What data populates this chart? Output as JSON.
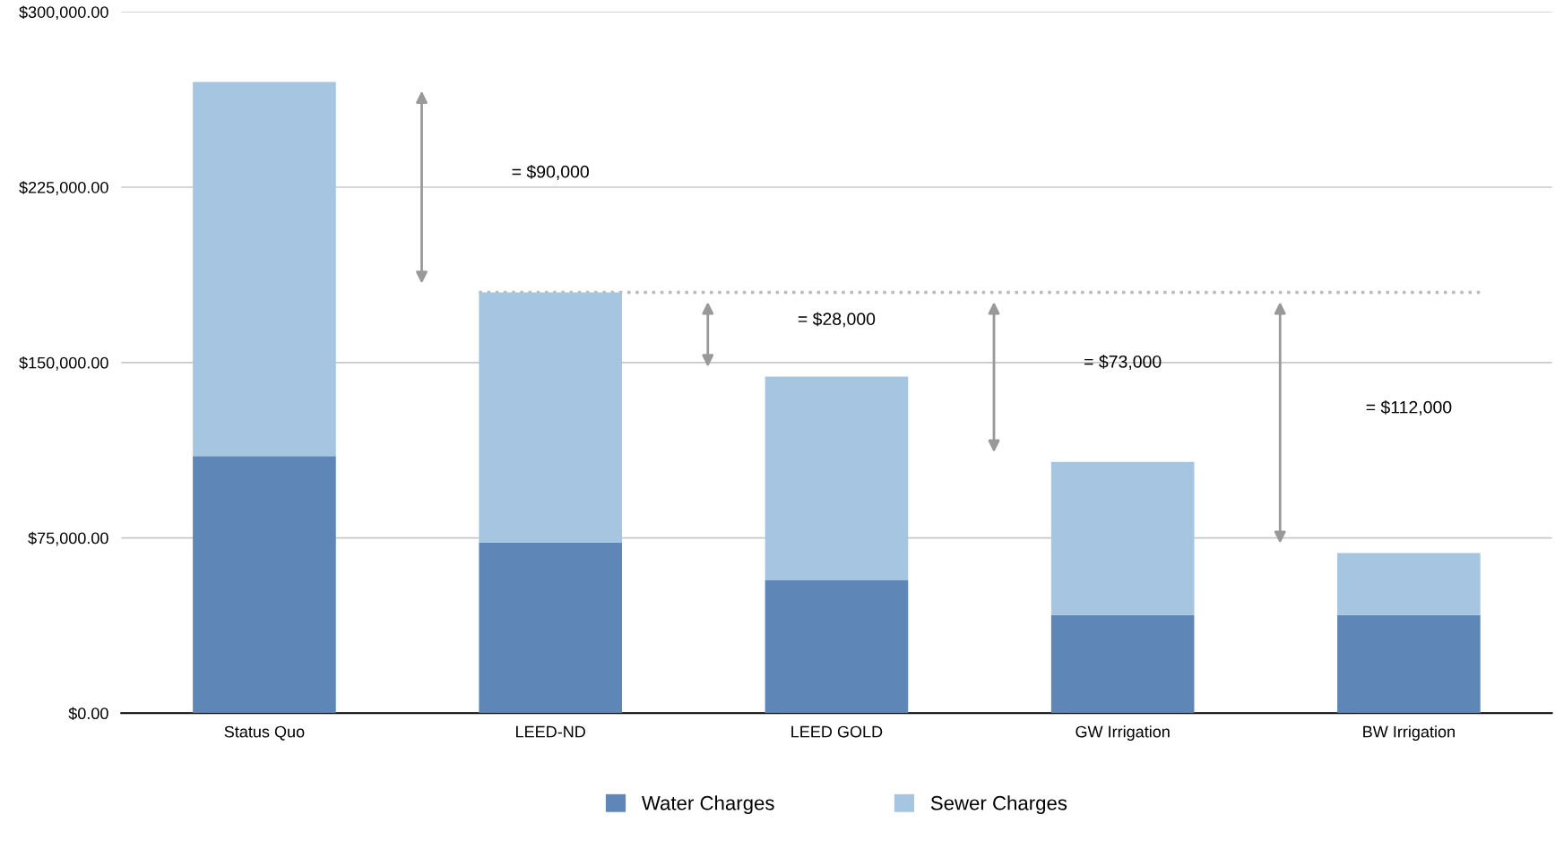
{
  "chart_data": {
    "type": "bar",
    "stacked": true,
    "categories": [
      "Status Quo",
      "LEED-ND",
      "LEED GOLD",
      "GW Irrigation",
      "BW Irrigation"
    ],
    "series": [
      {
        "name": "Water Charges",
        "color": "#5e87b8",
        "values": [
          110000,
          73000,
          57000,
          42000,
          42000
        ]
      },
      {
        "name": "Sewer Charges",
        "color": "#a6c5e0",
        "values": [
          160000,
          107000,
          87000,
          65500,
          26500
        ]
      }
    ],
    "ylim": [
      0,
      300000
    ],
    "yticks": [
      {
        "value": 0,
        "label": "$0.00"
      },
      {
        "value": 75000,
        "label": "$75,000.00"
      },
      {
        "value": 150000,
        "label": "$150,000.00"
      },
      {
        "value": 225000,
        "label": "$225,000.00"
      },
      {
        "value": 300000,
        "label": "$300,000.00"
      }
    ],
    "grid": "y",
    "legend": "bottom",
    "ref_lines": [
      {
        "axis": "y",
        "value": 180000,
        "color": "#bbbbbb",
        "line_style": "dotted"
      }
    ],
    "annotations": [
      "= $90,000",
      "= $28,000",
      "= $73,000",
      "= $112,000"
    ]
  }
}
